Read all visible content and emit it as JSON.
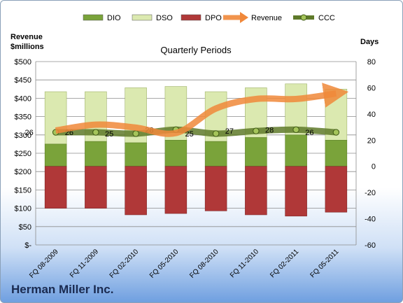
{
  "company": "Herman Miller Inc.",
  "chart_data": {
    "type": "bar",
    "title": "Quarterly Periods",
    "left_axis_title": [
      "Revenue",
      "$millions"
    ],
    "right_axis_title": "Days",
    "categories": [
      "FQ 08-2009",
      "FQ 11-2009",
      "FQ 02-2010",
      "FQ 05-2010",
      "FQ 08-2010",
      "FQ 11-2010",
      "FQ 02-2011",
      "FQ 05-2011"
    ],
    "left_ylim": [
      0,
      500
    ],
    "left_ticks": [
      "$-",
      "$50",
      "$100",
      "$150",
      "$200",
      "$250",
      "$300",
      "$350",
      "$400",
      "$450",
      "$500"
    ],
    "right_ylim": [
      -60,
      80
    ],
    "right_ticks": [
      "-60",
      "-40",
      "-20",
      "0",
      "20",
      "40",
      "60",
      "80"
    ],
    "grid": true,
    "legend_position": "top",
    "series": [
      {
        "name": "DIO",
        "type": "bar",
        "axis": "right",
        "color": "#7aa33a",
        "values": [
          17,
          19,
          18,
          20,
          19,
          22,
          24,
          20
        ]
      },
      {
        "name": "DSO",
        "type": "bar",
        "axis": "right",
        "color": "#dbe9b0",
        "values": [
          57,
          57,
          60,
          61,
          57,
          60,
          63,
          59
        ]
      },
      {
        "name": "DPO",
        "type": "bar",
        "axis": "right",
        "color": "#b03838",
        "values": [
          -32,
          -32,
          -37,
          -36,
          -34,
          -37,
          -38,
          -35
        ]
      },
      {
        "name": "Revenue",
        "type": "line",
        "axis": "left",
        "color": "#f0883a",
        "values": [
          312,
          328,
          320,
          305,
          372,
          398,
          398,
          413
        ]
      },
      {
        "name": "CCC",
        "type": "line",
        "axis": "right",
        "color": "#5f7a2a",
        "values": [
          26,
          26,
          25,
          28,
          25,
          27,
          28,
          26
        ]
      }
    ],
    "ccc_labels": [
      "26",
      "26",
      "25",
      "28",
      "25",
      "27",
      "28",
      "26"
    ]
  }
}
